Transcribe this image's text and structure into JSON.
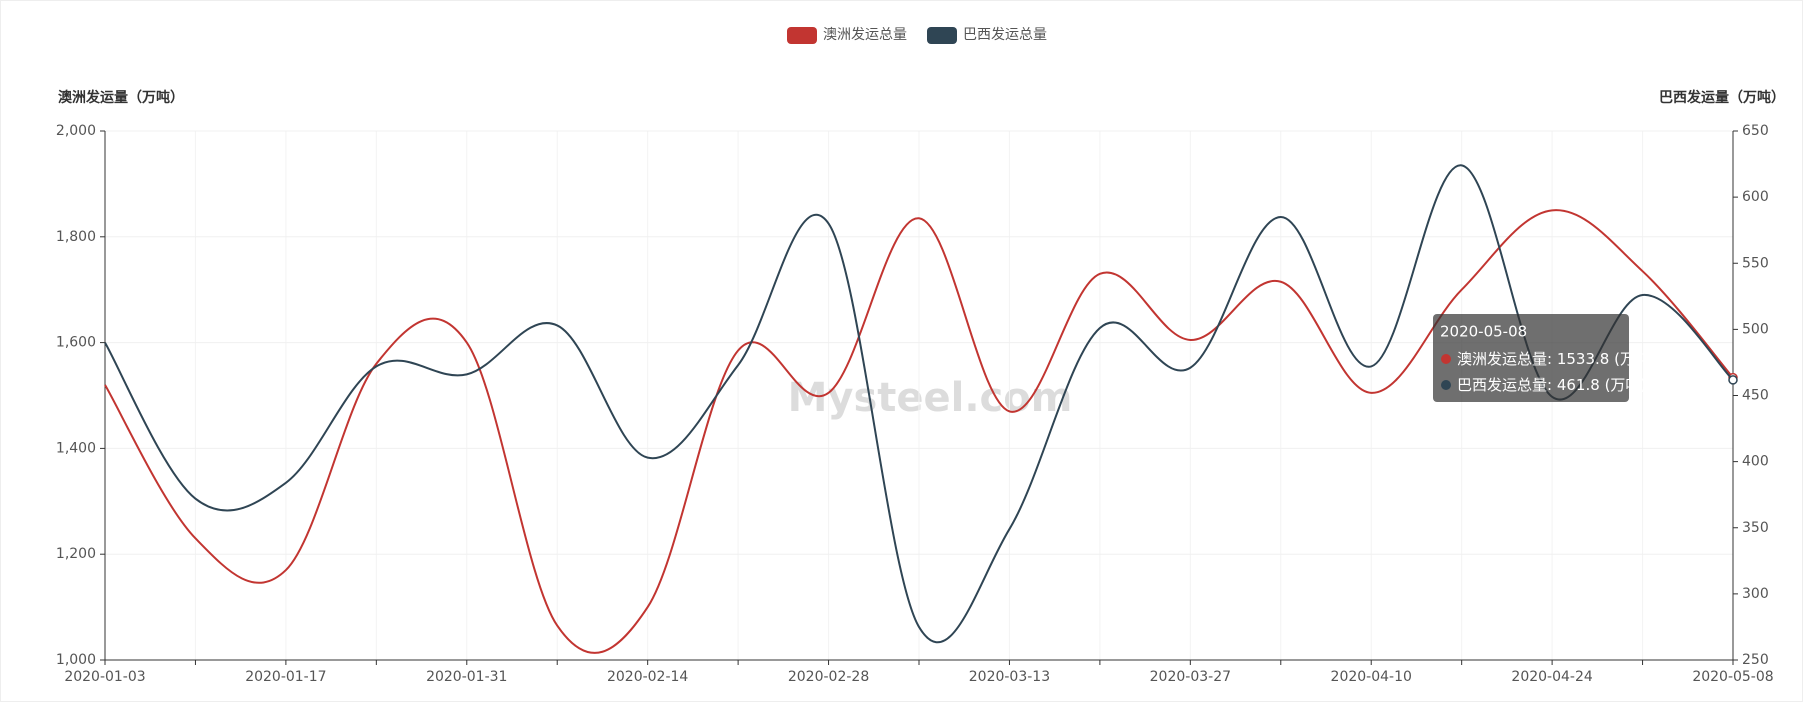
{
  "chart_data": {
    "type": "line",
    "y_label": "澳洲发运量（万吨）",
    "y2_label": "巴西发运量（万吨）",
    "categories": [
      "2020-01-03",
      null,
      "2020-01-17",
      null,
      "2020-01-31",
      null,
      "2020-02-14",
      null,
      "2020-02-28",
      null,
      "2020-03-13",
      null,
      "2020-03-27",
      null,
      "2020-04-10",
      null,
      "2020-04-24",
      null,
      "2020-05-08"
    ],
    "series": [
      {
        "name": "澳洲发运总量",
        "color": "#c23531",
        "values": [
          1520,
          1230,
          1170,
          1560,
          1600,
          1065,
          1100,
          1585,
          1505,
          1835,
          1470,
          1730,
          1605,
          1715,
          1505,
          1700,
          1850,
          1735,
          1533.8
        ]
      },
      {
        "name": "巴西发运总量",
        "color": "#2f4554",
        "axis": "y2",
        "values": [
          490,
          372,
          384,
          472,
          466,
          503,
          403,
          473,
          580,
          275,
          349,
          501,
          471,
          585,
          472,
          624,
          449,
          526,
          461.8
        ]
      }
    ],
    "ylim": [
      1000,
      2000
    ],
    "yticks": [
      {
        "value": 1000,
        "label": "1,000"
      },
      {
        "value": 1200,
        "label": "1,200"
      },
      {
        "value": 1400,
        "label": "1,400"
      },
      {
        "value": 1600,
        "label": "1,600"
      },
      {
        "value": 1800,
        "label": "1,800"
      },
      {
        "value": 2000,
        "label": "2,000"
      }
    ],
    "y2lim": [
      250,
      650
    ],
    "y2ticks": [
      250,
      300,
      350,
      400,
      450,
      500,
      550,
      600,
      650
    ],
    "grid": true,
    "legend": "top",
    "tooltip": {
      "unit": "(万吨)"
    },
    "watermark": "Mysteel.com"
  }
}
